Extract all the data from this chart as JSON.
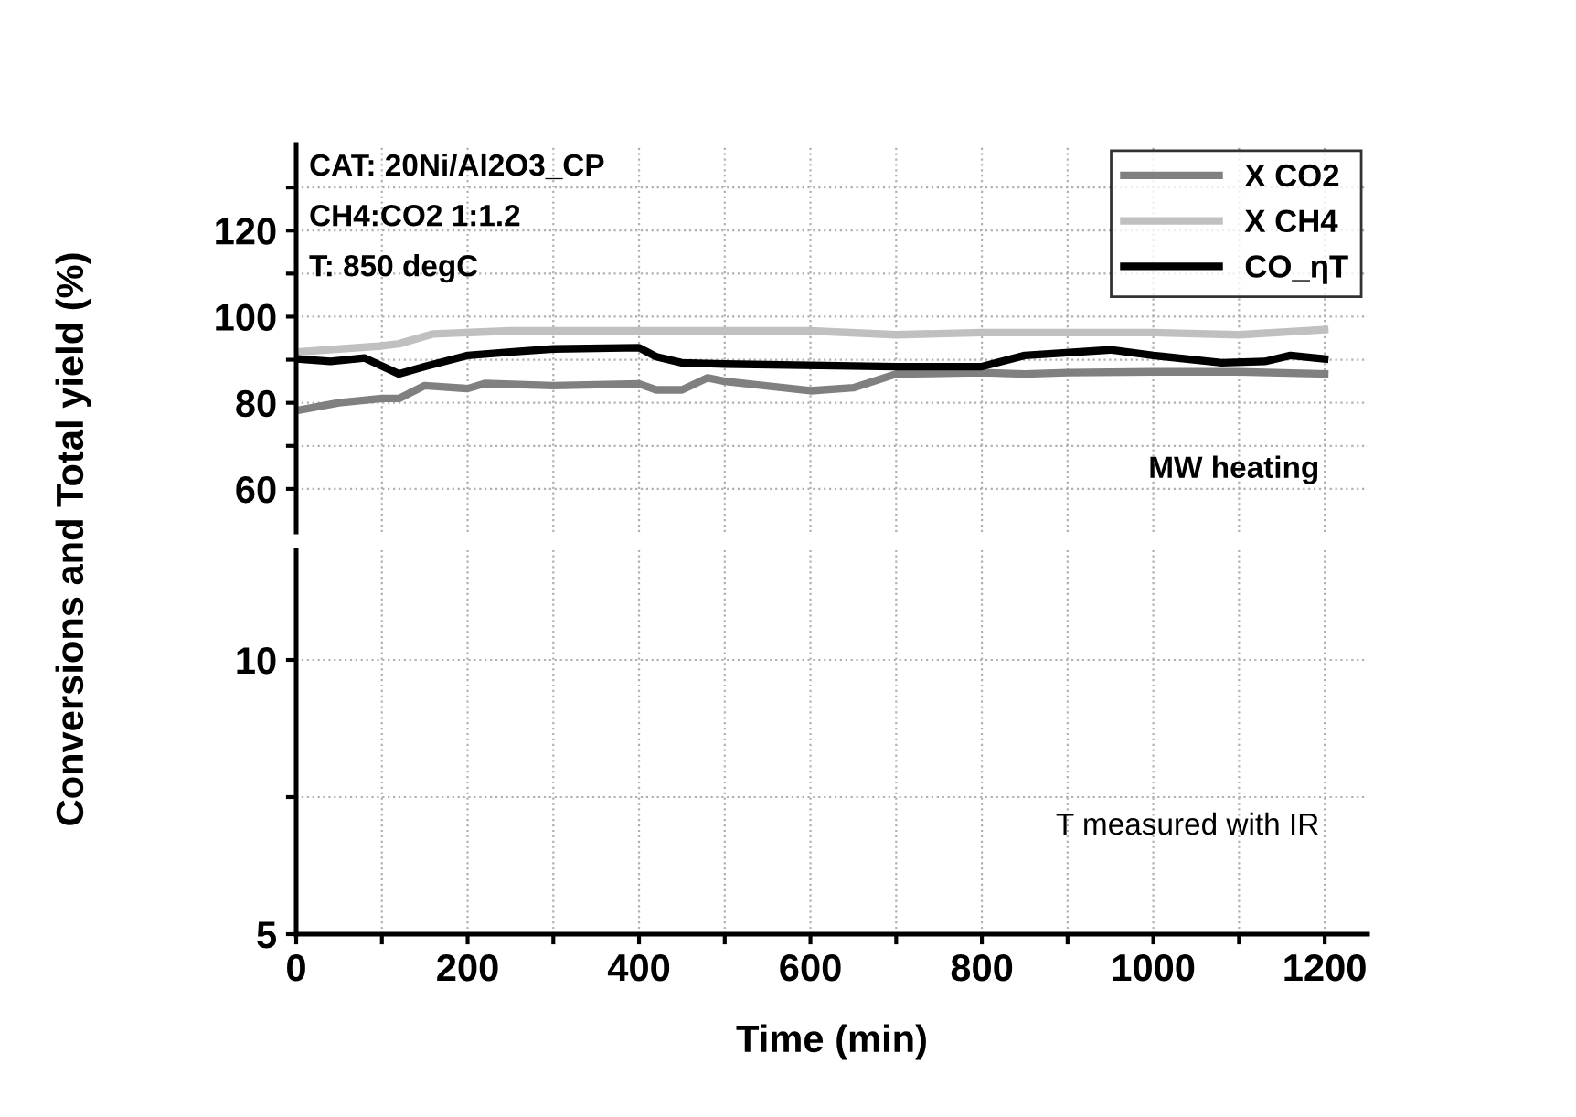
{
  "chart_data": [
    {
      "type": "line",
      "ylabel": "Conversions and Total yield (%)",
      "xlim": [
        0,
        1250
      ],
      "xticks": [
        0,
        {
          "value": 100,
          "label": null
        },
        200,
        {
          "value": 300,
          "label": null
        },
        400,
        {
          "value": 500,
          "label": null
        },
        600,
        {
          "value": 700,
          "label": null
        },
        800,
        {
          "value": 900,
          "label": null
        },
        1000,
        {
          "value": 1100,
          "label": null
        },
        1200
      ],
      "ylim": [
        50,
        140
      ],
      "yticks": [
        60,
        {
          "value": 70,
          "label": null
        },
        80,
        {
          "value": 90,
          "label": null
        },
        100,
        {
          "value": 110,
          "label": null
        },
        120,
        {
          "value": 130,
          "label": null
        }
      ],
      "tick_labels": "y",
      "grid": true,
      "legend": "top right",
      "marker": "none",
      "line_style": "solid",
      "annotations": [
        "CAT: 20Ni/Al2O3_CP",
        "CH4:CO2 1:1.2",
        "T: 850 degC",
        "MW heating"
      ],
      "series": [
        {
          "name": "X CO2",
          "color": "#808080",
          "x": [
            0,
            50,
            100,
            120,
            150,
            200,
            220,
            300,
            400,
            420,
            450,
            480,
            500,
            600,
            650,
            700,
            800,
            850,
            900,
            1000,
            1100,
            1200
          ],
          "values": [
            78.2,
            80,
            81,
            81,
            84,
            83.3,
            84.5,
            84,
            84.4,
            83,
            83,
            85.8,
            85,
            82.8,
            83.5,
            86.7,
            87,
            86.7,
            87,
            87.2,
            87.2,
            86.7
          ]
        },
        {
          "name": "X CH4",
          "color": "#c0c0c0",
          "x": [
            0,
            100,
            120,
            160,
            250,
            600,
            700,
            800,
            1000,
            1100,
            1200
          ],
          "values": [
            91.8,
            93.2,
            93.7,
            96,
            96.7,
            96.7,
            95.8,
            96.3,
            96.3,
            95.8,
            97
          ]
        },
        {
          "name": "CO_ηT",
          "color": "#000000",
          "x": [
            0,
            40,
            80,
            120,
            150,
            200,
            250,
            300,
            400,
            420,
            450,
            500,
            700,
            800,
            850,
            950,
            1000,
            1080,
            1130,
            1160,
            1200
          ],
          "values": [
            90.2,
            89.6,
            90.4,
            86.7,
            88.4,
            91,
            91.8,
            92.5,
            92.8,
            90.7,
            89.3,
            89,
            88.4,
            88.4,
            91,
            92.3,
            91,
            89.3,
            89.6,
            91,
            90.2
          ]
        }
      ]
    },
    {
      "type": "line",
      "xlabel": "Time (min)",
      "xlim": [
        0,
        1250
      ],
      "xticks": [
        0,
        {
          "value": 100,
          "label": null
        },
        200,
        {
          "value": 300,
          "label": null
        },
        400,
        {
          "value": 500,
          "label": null
        },
        600,
        {
          "value": 700,
          "label": null
        },
        800,
        {
          "value": 900,
          "label": null
        },
        1000,
        {
          "value": 1100,
          "label": null
        },
        1200
      ],
      "ylim": [
        5,
        12
      ],
      "yticks": [
        5,
        {
          "value": 7.5,
          "label": null
        },
        10
      ],
      "grid": true,
      "annotations": [
        "T measured with IR"
      ]
    }
  ]
}
